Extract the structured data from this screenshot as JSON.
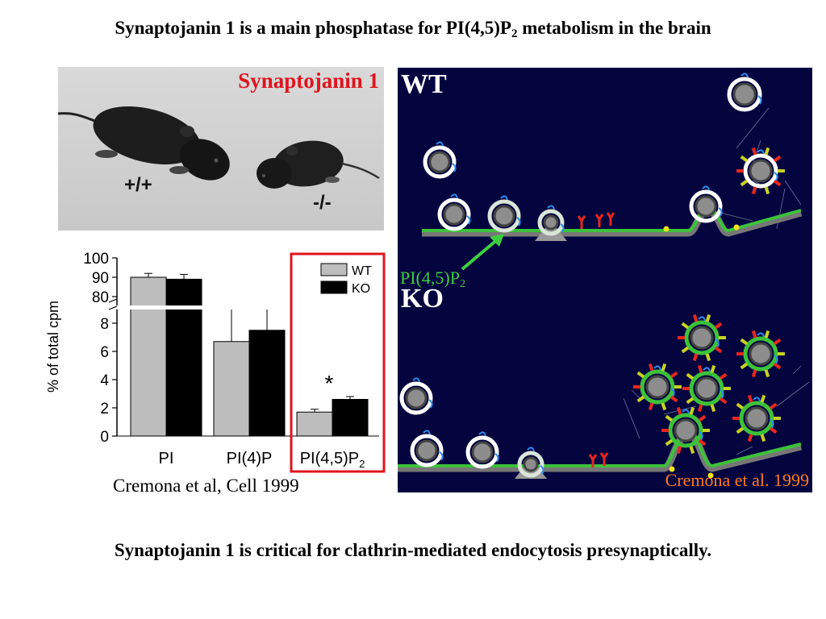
{
  "slide": {
    "title_main": "Synaptojanin 1 is a main phosphatase for PI(4,5)P",
    "title_sub": "2",
    "title_end": " metabolism in the brain",
    "footer": "Synaptojanin 1 is critical for clathrin-mediated endocytosis presynaptically."
  },
  "photo": {
    "label": "Synaptojanin 1",
    "genotype_wt": "+/+",
    "genotype_ko": "-/-"
  },
  "citation_left": "Cremona et al, Cell 1999",
  "diagram": {
    "wt_label": "WT",
    "ko_label": "KO",
    "pip_label_main": "PI(4,5)P",
    "pip_label_sub": "2",
    "citation": "Cremona et al. 1999",
    "colors": {
      "background": "#04053f",
      "membrane": "#3cc23a",
      "clathrin_coat": "#ffffff",
      "vesicle": "#8d8d8d",
      "pip2_heads": "#e8261f",
      "ap2": "#c8d21e",
      "actin": "#9aa0b8",
      "dynamin": "#f2e21a",
      "arrow": "#3cd040"
    }
  },
  "chart_data": {
    "type": "bar",
    "categories": [
      "PI",
      "PI(4)P",
      "PI(4,5)P2"
    ],
    "series": [
      {
        "name": "WT",
        "values": [
          90,
          6.7,
          1.7
        ],
        "errors": [
          2,
          2.4,
          0.2
        ],
        "color": "#bdbdbd"
      },
      {
        "name": "KO",
        "values": [
          89,
          7.5,
          2.6
        ],
        "errors": [
          2.5,
          1.5,
          0.2
        ],
        "color": "#000000"
      }
    ],
    "ylabel": "% of total cpm",
    "yticks_lower": [
      "0",
      "2",
      "4",
      "6",
      "8"
    ],
    "yticks_upper": [
      "80",
      "90",
      "100"
    ],
    "ylim": [
      0,
      100
    ],
    "axis_break": [
      8.5,
      80
    ],
    "legend_position": "top-right",
    "annotation": "*",
    "highlight": "PI(4,5)P2 group outlined in red",
    "highlight_color": "#e0141e"
  }
}
